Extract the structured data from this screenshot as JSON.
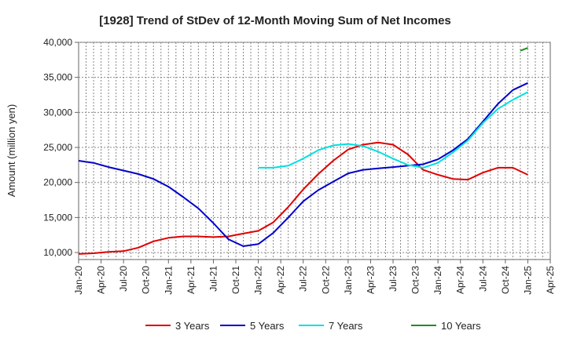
{
  "chart_data": {
    "type": "line",
    "title": "[1928]  Trend of StDev of 12-Month Moving Sum of Net Incomes",
    "xlabel": "",
    "ylabel": "Amount (million yen)",
    "x_ticks": [
      "Jan-20",
      "Apr-20",
      "Jul-20",
      "Oct-20",
      "Jan-21",
      "Apr-21",
      "Jul-21",
      "Oct-21",
      "Jan-22",
      "Apr-22",
      "Jul-22",
      "Oct-22",
      "Jan-23",
      "Apr-23",
      "Jul-23",
      "Oct-23",
      "Jan-24",
      "Apr-24",
      "Jul-24",
      "Oct-24",
      "Jan-25",
      "Apr-25"
    ],
    "y_ticks": [
      "10,000",
      "15,000",
      "20,000",
      "25,000",
      "30,000",
      "35,000",
      "40,000"
    ],
    "ylim": [
      9000,
      40000
    ],
    "xlim": [
      "2020-01",
      "2025-04"
    ],
    "grid": true,
    "legend_position": "bottom",
    "series": [
      {
        "name": "3 Years",
        "color": "#e00000",
        "x": [
          "2020-01",
          "2020-03",
          "2020-05",
          "2020-07",
          "2020-09",
          "2020-11",
          "2021-01",
          "2021-03",
          "2021-05",
          "2021-07",
          "2021-09",
          "2021-11",
          "2022-01",
          "2022-03",
          "2022-05",
          "2022-07",
          "2022-09",
          "2022-11",
          "2023-01",
          "2023-03",
          "2023-05",
          "2023-07",
          "2023-09",
          "2023-11",
          "2024-01",
          "2024-03",
          "2024-05",
          "2024-07",
          "2024-09",
          "2024-11",
          "2025-01"
        ],
        "values": [
          9800,
          9900,
          10100,
          10200,
          10700,
          11600,
          12100,
          12300,
          12300,
          12200,
          12300,
          12700,
          13100,
          14300,
          16500,
          19000,
          21200,
          23100,
          24700,
          25400,
          25700,
          25400,
          24000,
          21800,
          21100,
          20500,
          20400,
          21400,
          22100,
          22100,
          21100
        ]
      },
      {
        "name": "5 Years",
        "color": "#0000cc",
        "x": [
          "2020-01",
          "2020-03",
          "2020-05",
          "2020-07",
          "2020-09",
          "2020-11",
          "2021-01",
          "2021-03",
          "2021-05",
          "2021-07",
          "2021-09",
          "2021-11",
          "2022-01",
          "2022-03",
          "2022-05",
          "2022-07",
          "2022-09",
          "2022-11",
          "2023-01",
          "2023-03",
          "2023-05",
          "2023-07",
          "2023-09",
          "2023-11",
          "2024-01",
          "2024-03",
          "2024-05",
          "2024-07",
          "2024-09",
          "2024-11",
          "2025-01"
        ],
        "values": [
          23100,
          22800,
          22200,
          21700,
          21200,
          20500,
          19400,
          17900,
          16300,
          14200,
          11900,
          10900,
          11200,
          12800,
          15000,
          17300,
          18900,
          20100,
          21300,
          21800,
          22000,
          22200,
          22400,
          22600,
          23300,
          24600,
          26200,
          28700,
          31200,
          33200,
          34200
        ]
      },
      {
        "name": "7 Years",
        "color": "#00e0e0",
        "x": [
          "2022-01",
          "2022-03",
          "2022-05",
          "2022-07",
          "2022-09",
          "2022-11",
          "2023-01",
          "2023-03",
          "2023-05",
          "2023-07",
          "2023-09",
          "2023-11",
          "2024-01",
          "2024-03",
          "2024-05",
          "2024-07",
          "2024-09",
          "2024-11",
          "2025-01"
        ],
        "values": [
          22100,
          22100,
          22400,
          23400,
          24600,
          25300,
          25500,
          25200,
          24400,
          23400,
          22500,
          22100,
          22800,
          24300,
          26000,
          28500,
          30500,
          31800,
          32900
        ]
      },
      {
        "name": "10 Years",
        "color": "#228b22",
        "x": [
          "2024-12",
          "2025-01"
        ],
        "values": [
          38800,
          39200
        ]
      }
    ]
  }
}
